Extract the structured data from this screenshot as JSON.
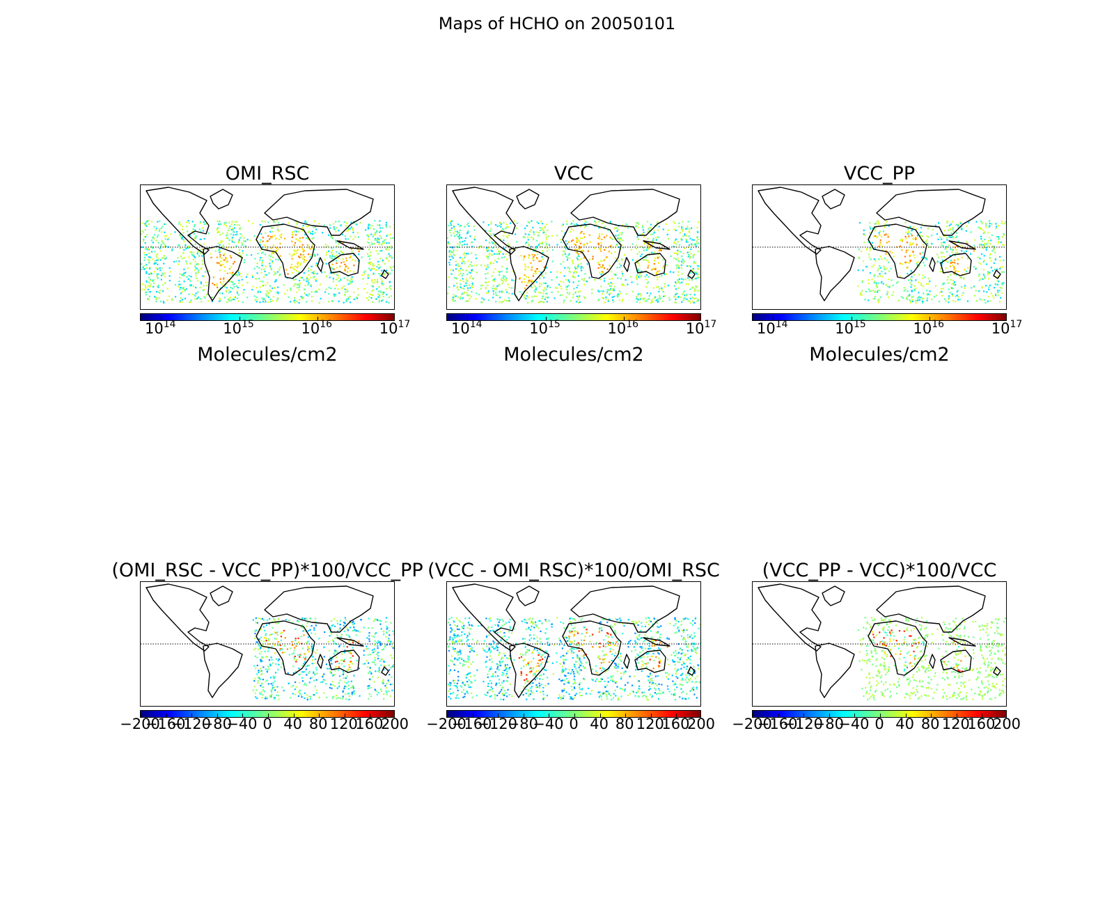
{
  "figure_title": "Maps of HCHO on 20050101",
  "panels": [
    {
      "title": "OMI_RSC",
      "scale": "log",
      "coverage": "global",
      "colorbar_label": "Molecules/cm2",
      "colorbar_ticks": [
        "14",
        "15",
        "16",
        "17"
      ]
    },
    {
      "title": "VCC",
      "scale": "log",
      "coverage": "global",
      "colorbar_label": "Molecules/cm2",
      "colorbar_ticks": [
        "14",
        "15",
        "16",
        "17"
      ]
    },
    {
      "title": "VCC_PP",
      "scale": "log",
      "coverage": "eastern",
      "colorbar_label": "Molecules/cm2",
      "colorbar_ticks": [
        "14",
        "15",
        "16",
        "17"
      ]
    },
    {
      "title": "(OMI_RSC - VCC_PP)*100/VCC_PP",
      "scale": "linear",
      "coverage": "eastern",
      "colorbar_label": "",
      "colorbar_ticks": [
        "−200",
        "−160",
        "−120",
        "−80",
        "−40",
        "0",
        "40",
        "80",
        "120",
        "160",
        "200"
      ]
    },
    {
      "title": "(VCC - OMI_RSC)*100/OMI_RSC",
      "scale": "linear",
      "coverage": "global",
      "colorbar_label": "",
      "colorbar_ticks": [
        "−200",
        "−160",
        "−120",
        "−80",
        "−40",
        "0",
        "40",
        "80",
        "120",
        "160",
        "200"
      ]
    },
    {
      "title": "(VCC_PP - VCC)*100/VCC",
      "scale": "linear",
      "coverage": "eastern",
      "colorbar_label": "",
      "colorbar_ticks": [
        "−200",
        "−160",
        "−120",
        "−80",
        "−40",
        "0",
        "40",
        "80",
        "120",
        "160",
        "200"
      ]
    }
  ],
  "colormap": [
    "#00007f",
    "#0000ff",
    "#007fff",
    "#00ffff",
    "#7dff7a",
    "#ffff00",
    "#ff7f00",
    "#ff0000",
    "#7f0000"
  ]
}
